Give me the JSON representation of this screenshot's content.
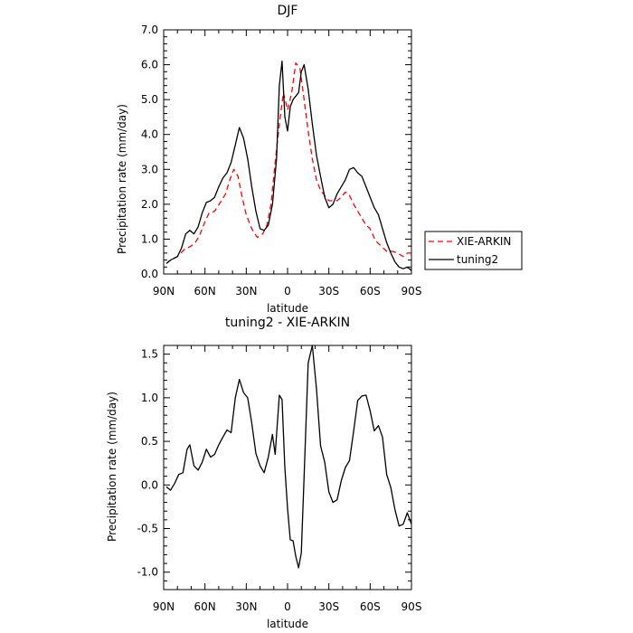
{
  "chart_data": [
    {
      "type": "line",
      "title": "DJF",
      "xlabel": "latitude",
      "ylabel": "Precipitation rate (mm/day)",
      "xlim": [
        -90,
        90
      ],
      "ylim": [
        0,
        7
      ],
      "x_ticks": [
        -90,
        -60,
        -30,
        0,
        30,
        60,
        90
      ],
      "x_tick_labels": [
        "90N",
        "60N",
        "30N",
        "0",
        "30S",
        "60S",
        "90S"
      ],
      "y_ticks": [
        0,
        1,
        2,
        3,
        4,
        5,
        6,
        7
      ],
      "y_tick_labels": [
        "0.0",
        "1.0",
        "2.0",
        "3.0",
        "4.0",
        "5.0",
        "6.0",
        "7.0"
      ],
      "legend_placement": "right",
      "series": [
        {
          "name": "XIE-ARKIN",
          "color": "#ff0000",
          "dash": "dashed",
          "x": [
            -88,
            -85,
            -80,
            -75,
            -70,
            -67,
            -64,
            -60,
            -57,
            -53,
            -48,
            -45,
            -42,
            -39,
            -36,
            -33,
            -30,
            -26,
            -22,
            -18,
            -15,
            -12,
            -9,
            -6,
            -3,
            0,
            3,
            6,
            9,
            12,
            15,
            18,
            21,
            24,
            27,
            30,
            33,
            36,
            39,
            42,
            45,
            48,
            51,
            54,
            57,
            60,
            64,
            68,
            72,
            76,
            80,
            84,
            87,
            90
          ],
          "y": [
            0.3,
            0.4,
            0.5,
            0.7,
            0.8,
            0.9,
            1.1,
            1.5,
            1.75,
            1.8,
            2.1,
            2.3,
            2.7,
            3.0,
            2.8,
            2.2,
            1.7,
            1.3,
            1.05,
            1.15,
            1.4,
            2.0,
            3.2,
            4.3,
            5.2,
            4.7,
            5.2,
            6.05,
            5.9,
            5.0,
            4.1,
            3.3,
            2.7,
            2.4,
            2.25,
            2.1,
            2.1,
            2.1,
            2.2,
            2.35,
            2.25,
            2.0,
            1.8,
            1.6,
            1.4,
            1.3,
            0.95,
            0.8,
            0.65,
            0.65,
            0.6,
            0.5,
            0.6,
            0.6
          ]
        },
        {
          "name": "tuning2",
          "color": "#000000",
          "dash": "solid",
          "x": [
            -88,
            -85,
            -80,
            -77,
            -74,
            -71,
            -68,
            -65,
            -62,
            -59,
            -56,
            -53,
            -50,
            -47,
            -44,
            -41,
            -38,
            -35,
            -32,
            -29,
            -26,
            -23,
            -20,
            -17,
            -14,
            -11,
            -8,
            -6,
            -4,
            -2,
            0,
            2,
            4,
            6,
            8,
            10,
            12,
            15,
            18,
            21,
            24,
            27,
            30,
            33,
            36,
            39,
            42,
            45,
            48,
            51,
            54,
            57,
            60,
            63,
            66,
            69,
            72,
            75,
            78,
            81,
            84,
            87,
            90
          ],
          "y": [
            0.3,
            0.4,
            0.5,
            0.75,
            1.15,
            1.25,
            1.15,
            1.35,
            1.75,
            2.05,
            2.1,
            2.2,
            2.5,
            2.75,
            2.9,
            3.2,
            3.7,
            4.2,
            3.9,
            3.3,
            2.5,
            1.8,
            1.3,
            1.25,
            1.4,
            2.0,
            3.3,
            5.4,
            6.1,
            4.5,
            4.1,
            4.8,
            5.0,
            5.1,
            5.2,
            5.8,
            6.0,
            5.3,
            4.3,
            3.4,
            2.8,
            2.2,
            1.9,
            2.0,
            2.3,
            2.5,
            2.7,
            3.0,
            3.05,
            2.9,
            2.8,
            2.5,
            2.2,
            1.9,
            1.7,
            1.3,
            0.9,
            0.6,
            0.35,
            0.2,
            0.15,
            0.2,
            0.1
          ]
        }
      ]
    },
    {
      "type": "line",
      "title": "tuning2 - XIE-ARKIN",
      "xlabel": "latitude",
      "ylabel": "Precipitation rate (mm/day)",
      "xlim": [
        -90,
        90
      ],
      "ylim": [
        -1.2,
        1.6
      ],
      "x_ticks": [
        -90,
        -60,
        -30,
        0,
        30,
        60,
        90
      ],
      "x_tick_labels": [
        "90N",
        "60N",
        "30N",
        "0",
        "30S",
        "60S",
        "90S"
      ],
      "y_ticks": [
        -1.0,
        -0.5,
        0.0,
        0.5,
        1.0,
        1.5
      ],
      "y_tick_labels": [
        "-1.0",
        "-0.5",
        "0.0",
        "0.5",
        "1.0",
        "1.5"
      ],
      "series": [
        {
          "name": "",
          "color": "#000000",
          "dash": "solid",
          "x": [
            -88,
            -85,
            -82,
            -79,
            -76,
            -73,
            -71,
            -68,
            -65,
            -62,
            -59,
            -56,
            -53,
            -50,
            -47,
            -44,
            -41,
            -38,
            -35,
            -32,
            -29,
            -26,
            -23,
            -20,
            -17,
            -14,
            -11,
            -9,
            -6,
            -4,
            -2,
            0,
            2,
            4,
            6,
            8,
            10,
            12,
            15,
            18,
            21,
            24,
            27,
            30,
            33,
            36,
            39,
            42,
            45,
            48,
            51,
            54,
            57,
            60,
            63,
            66,
            69,
            72,
            75,
            78,
            81,
            84,
            87,
            90
          ],
          "y": [
            -0.02,
            -0.06,
            0.02,
            0.12,
            0.14,
            0.41,
            0.46,
            0.22,
            0.17,
            0.26,
            0.41,
            0.32,
            0.35,
            0.46,
            0.55,
            0.63,
            0.6,
            1.0,
            1.21,
            1.06,
            1.0,
            0.71,
            0.36,
            0.22,
            0.14,
            0.32,
            0.58,
            0.35,
            1.03,
            0.98,
            0.2,
            -0.27,
            -0.63,
            -0.64,
            -0.82,
            -0.95,
            -0.78,
            0.1,
            1.4,
            1.6,
            1.1,
            0.45,
            0.26,
            -0.08,
            -0.2,
            -0.17,
            0.05,
            0.2,
            0.28,
            0.62,
            0.97,
            1.02,
            1.03,
            0.85,
            0.62,
            0.68,
            0.55,
            0.12,
            -0.03,
            -0.28,
            -0.47,
            -0.45,
            -0.32,
            -0.45
          ]
        }
      ]
    }
  ]
}
